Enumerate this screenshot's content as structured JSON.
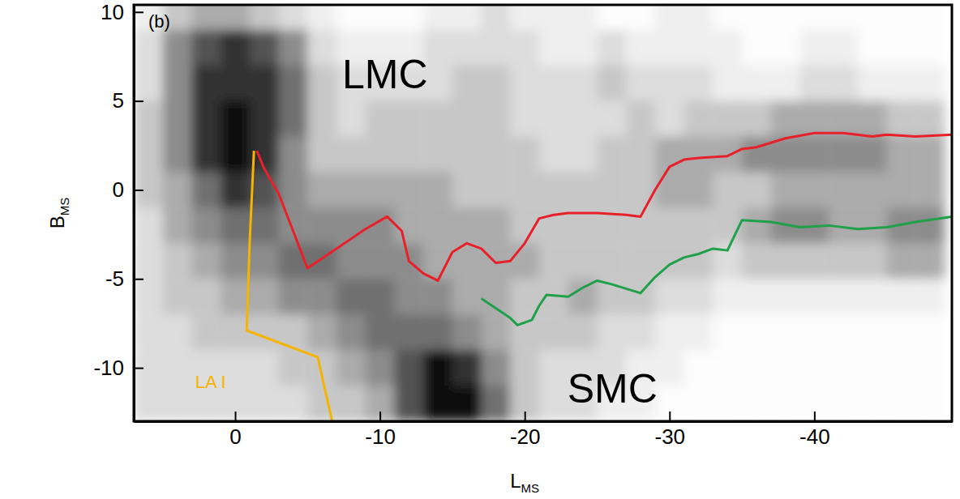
{
  "chart_data": {
    "type": "line",
    "title": "(b)",
    "xlabel": "LMS",
    "ylabel": "BMS",
    "xlim": [
      7,
      -49.5
    ],
    "ylim": [
      -13,
      10.4
    ],
    "xticks": [
      0,
      -10,
      -20,
      -30,
      -40
    ],
    "yticks": [
      -10,
      -5,
      0,
      5,
      10
    ],
    "annotations": [
      "LMC",
      "SMC"
    ],
    "series": [
      {
        "name": "LA I",
        "color": "#f5b400",
        "x": [
          -1.3,
          -1.0,
          -0.8,
          -5.7,
          -6.7
        ],
        "values": [
          2.2,
          -3,
          -7.9,
          -9.4,
          -13
        ]
      },
      {
        "color": "#e8202a",
        "x": [
          -1.5,
          -2,
          -3,
          -5,
          -7,
          -9,
          -10.5,
          -11.5,
          -12,
          -13,
          -14,
          -15,
          -16,
          -17,
          -18,
          -19,
          -20,
          -21,
          -22,
          -23,
          -25,
          -27,
          -28,
          -29,
          -30,
          -31,
          -32,
          -34,
          -35,
          -36,
          -38,
          -40,
          -42,
          -44,
          -45,
          -47,
          -49.5
        ],
        "values": [
          2.2,
          1.2,
          -0.2,
          -4.4,
          -3.3,
          -2.2,
          -1.5,
          -2.3,
          -4,
          -4.7,
          -5.1,
          -3.5,
          -3,
          -3.3,
          -4.1,
          -4,
          -3,
          -1.6,
          -1.4,
          -1.3,
          -1.3,
          -1.4,
          -1.5,
          0,
          1.3,
          1.7,
          1.8,
          1.9,
          2.3,
          2.4,
          2.9,
          3.2,
          3.2,
          3,
          3.1,
          3.0,
          3.1
        ]
      },
      {
        "color": "#20a04a",
        "x": [
          -17,
          -19,
          -19.5,
          -20.5,
          -21,
          -21.5,
          -23,
          -24,
          -25,
          -26,
          -28,
          -29,
          -30,
          -31,
          -32,
          -33,
          -34,
          -35,
          -37,
          -39,
          -41,
          -43,
          -45,
          -47,
          -49.5
        ],
        "values": [
          -6.1,
          -7.2,
          -7.6,
          -7.3,
          -6.5,
          -5.9,
          -6,
          -5.5,
          -5.1,
          -5.3,
          -5.8,
          -4.9,
          -4.2,
          -3.8,
          -3.6,
          -3.3,
          -3.4,
          -1.7,
          -1.8,
          -2.1,
          -2,
          -2.2,
          -2.1,
          -1.8,
          -1.5
        ]
      }
    ],
    "density": {
      "x": [
        6,
        4,
        2,
        0,
        -2,
        -4,
        -6,
        -8,
        -10,
        -12,
        -14,
        -16,
        -18,
        -20,
        -22,
        -24,
        -26,
        -28,
        -30,
        -32,
        -34,
        -36,
        -38,
        -40,
        -42,
        -44,
        -46,
        -48
      ],
      "y": [
        10,
        8,
        6,
        4,
        2,
        0,
        -2,
        -4,
        -6,
        -8,
        -10,
        -12
      ],
      "z": [
        [
          1,
          3,
          4,
          4,
          3,
          2,
          1,
          0,
          0,
          0,
          1,
          1,
          2,
          1,
          1,
          1,
          0,
          0,
          1,
          1,
          0,
          0,
          0,
          0,
          0,
          0,
          0,
          0
        ],
        [
          2,
          5,
          7,
          8,
          7,
          5,
          2,
          1,
          1,
          1,
          2,
          2,
          2,
          2,
          1,
          1,
          2,
          1,
          1,
          1,
          1,
          0,
          0,
          1,
          1,
          0,
          0,
          0
        ],
        [
          2,
          5,
          8,
          8,
          8,
          6,
          3,
          2,
          2,
          2,
          2,
          3,
          3,
          2,
          2,
          2,
          3,
          2,
          2,
          2,
          1,
          1,
          1,
          2,
          2,
          1,
          1,
          1
        ],
        [
          3,
          5,
          8,
          9,
          8,
          6,
          3,
          2,
          3,
          3,
          3,
          3,
          3,
          2,
          2,
          2,
          2,
          3,
          2,
          3,
          3,
          3,
          4,
          4,
          4,
          4,
          3,
          3
        ],
        [
          3,
          5,
          8,
          9,
          8,
          5,
          3,
          3,
          3,
          3,
          3,
          3,
          3,
          3,
          2,
          2,
          3,
          3,
          4,
          4,
          4,
          5,
          5,
          5,
          5,
          5,
          4,
          4
        ],
        [
          3,
          4,
          6,
          8,
          7,
          5,
          4,
          4,
          4,
          4,
          4,
          3,
          3,
          3,
          3,
          3,
          3,
          3,
          4,
          4,
          3,
          3,
          4,
          4,
          4,
          4,
          4,
          4
        ],
        [
          2,
          4,
          5,
          6,
          6,
          5,
          5,
          5,
          5,
          4,
          4,
          4,
          4,
          3,
          3,
          3,
          3,
          3,
          3,
          3,
          3,
          4,
          5,
          5,
          4,
          4,
          5,
          5
        ],
        [
          2,
          3,
          4,
          5,
          5,
          6,
          6,
          5,
          5,
          5,
          4,
          4,
          4,
          4,
          3,
          3,
          3,
          3,
          3,
          3,
          2,
          3,
          3,
          3,
          3,
          3,
          4,
          4
        ],
        [
          2,
          3,
          3,
          4,
          4,
          5,
          5,
          6,
          6,
          5,
          5,
          4,
          4,
          3,
          3,
          4,
          3,
          3,
          2,
          2,
          1,
          1,
          1,
          1,
          1,
          1,
          1,
          1
        ],
        [
          2,
          2,
          3,
          3,
          3,
          3,
          4,
          5,
          6,
          6,
          6,
          5,
          4,
          3,
          3,
          3,
          2,
          2,
          1,
          1,
          0,
          0,
          0,
          0,
          0,
          0,
          0,
          0
        ],
        [
          2,
          2,
          2,
          2,
          2,
          3,
          3,
          4,
          5,
          7,
          9,
          8,
          5,
          3,
          2,
          2,
          2,
          1,
          1,
          0,
          0,
          0,
          0,
          0,
          0,
          0,
          0,
          0
        ],
        [
          2,
          2,
          2,
          2,
          2,
          2,
          3,
          3,
          4,
          7,
          9,
          9,
          6,
          3,
          2,
          2,
          1,
          1,
          0,
          0,
          0,
          0,
          0,
          0,
          0,
          0,
          0,
          0
        ]
      ]
    }
  }
}
